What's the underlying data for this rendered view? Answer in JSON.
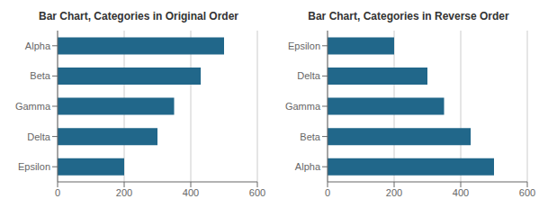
{
  "chart_data": [
    {
      "type": "bar",
      "orientation": "horizontal",
      "title": "Bar Chart, Categories in Original Order",
      "categories": [
        "Alpha",
        "Beta",
        "Gamma",
        "Delta",
        "Epsilon"
      ],
      "values": [
        500,
        430,
        350,
        300,
        200
      ],
      "color": "#21678a",
      "xlim": [
        0,
        600
      ],
      "xticks": [
        0,
        200,
        400,
        600
      ],
      "grid": true
    },
    {
      "type": "bar",
      "orientation": "horizontal",
      "title": "Bar Chart, Categories in Reverse Order",
      "categories": [
        "Epsilon",
        "Delta",
        "Gamma",
        "Beta",
        "Alpha"
      ],
      "values": [
        200,
        300,
        350,
        430,
        500
      ],
      "color": "#21678a",
      "xlim": [
        0,
        600
      ],
      "xticks": [
        0,
        200,
        400,
        600
      ],
      "grid": true
    }
  ]
}
